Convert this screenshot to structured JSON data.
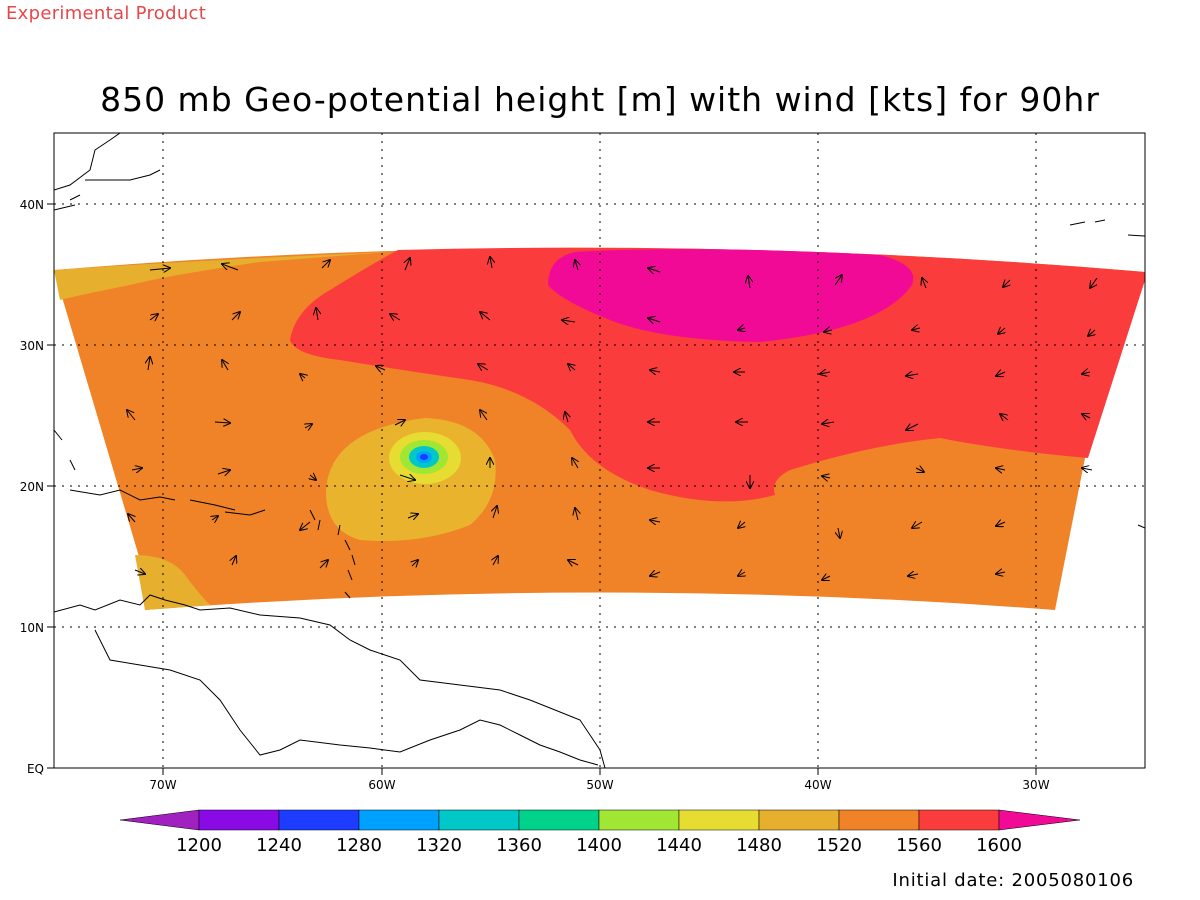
{
  "product_tag": "Experimental Product",
  "title": "850 mb Geo-potential height [m] with wind [kts] for 90hr",
  "initial_date": "Initial date: 2005080106",
  "map": {
    "lon_labels": [
      "70W",
      "60W",
      "50W",
      "40W",
      "30W"
    ],
    "lat_labels": [
      "EQ",
      "10N",
      "20N",
      "30N",
      "40N"
    ],
    "lon_range": [
      -75,
      -25
    ],
    "lat_range": [
      0,
      45
    ],
    "grid": "dotted"
  },
  "colorbar": {
    "levels": [
      "1200",
      "1240",
      "1280",
      "1320",
      "1360",
      "1400",
      "1440",
      "1480",
      "1520",
      "1560",
      "1600"
    ],
    "colors": [
      "#a020c0",
      "#8a0ae6",
      "#1e3cff",
      "#00a0ff",
      "#00c8c8",
      "#00d28c",
      "#a0e632",
      "#e6dc32",
      "#e6af2d",
      "#f08228",
      "#fa3c3c",
      "#f00a96"
    ]
  },
  "field_colors": {
    "1480-1520": "#e6af2d",
    "1520-1560": "#f08228",
    "1560-1600": "#fa3c3c",
    "above-1600": "#f00a96",
    "low_center_outer": "#e6dc32",
    "low_center_mid": "#a0e632",
    "low_center_inner": "#00c8c8",
    "low_center_core": "#1e3cff"
  }
}
